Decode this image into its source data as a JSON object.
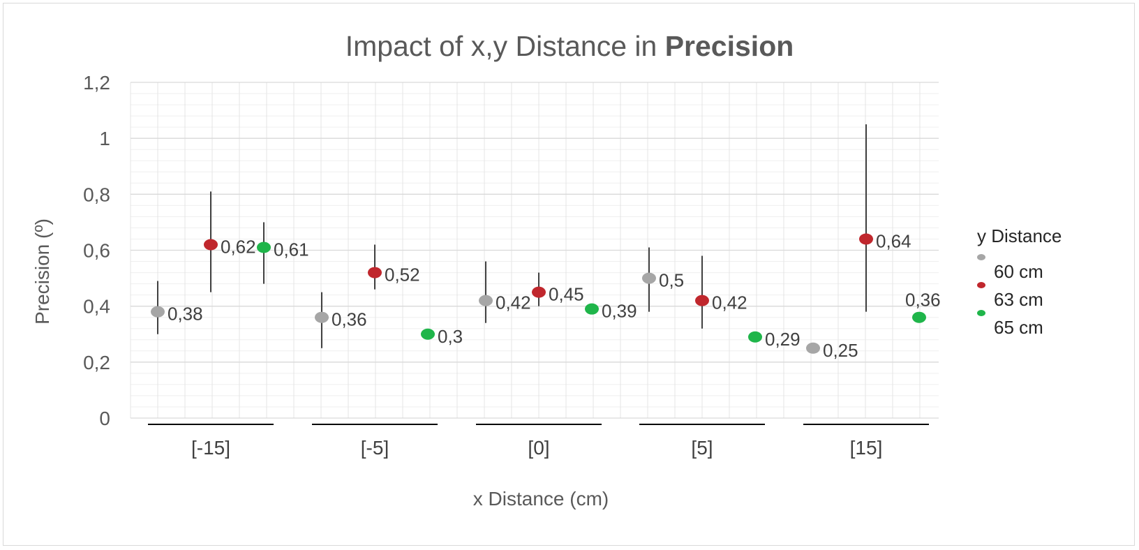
{
  "chart_data": {
    "type": "scatter",
    "title_prefix": "Impact of x,y Distance in ",
    "title_bold": "Precision",
    "xlabel": "x Distance (cm)",
    "ylabel": "Precision (º)",
    "ylim": [
      0,
      1.2
    ],
    "yticks": [
      0,
      0.2,
      0.4,
      0.6,
      0.8,
      1,
      1.2
    ],
    "ytick_labels": [
      "0",
      "0,2",
      "0,4",
      "0,6",
      "0,8",
      "1",
      "1,2"
    ],
    "grid": true,
    "categories": [
      "[-15]",
      "[-5]",
      "[0]",
      "[5]",
      "[15]"
    ],
    "legend": {
      "title": "y Distance",
      "placement": "right"
    },
    "series": [
      {
        "name": "60 cm",
        "color": "#a6a6a6",
        "values": [
          0.38,
          0.36,
          0.42,
          0.5,
          0.25
        ],
        "labels": [
          "0,38",
          "0,36",
          "0,42",
          "0,5",
          "0,25"
        ],
        "err_low": [
          0.3,
          0.25,
          0.34,
          0.38,
          null
        ],
        "err_high": [
          0.49,
          0.45,
          0.56,
          0.61,
          null
        ]
      },
      {
        "name": "63 cm",
        "color": "#c0272d",
        "values": [
          0.62,
          0.52,
          0.45,
          0.42,
          0.64
        ],
        "labels": [
          "0,62",
          "0,52",
          "0,45",
          "0,42",
          "0,64"
        ],
        "err_low": [
          0.45,
          0.46,
          0.4,
          0.32,
          0.38
        ],
        "err_high": [
          0.81,
          0.62,
          0.52,
          0.58,
          1.05
        ]
      },
      {
        "name": "65 cm",
        "color": "#1fb54a",
        "values": [
          0.61,
          0.3,
          0.39,
          0.29,
          0.36
        ],
        "labels": [
          "0,61",
          "0,3",
          "0,39",
          "0,29",
          "0,36"
        ],
        "err_low": [
          0.48,
          null,
          null,
          null,
          null
        ],
        "err_high": [
          0.7,
          null,
          null,
          null,
          null
        ]
      }
    ]
  }
}
